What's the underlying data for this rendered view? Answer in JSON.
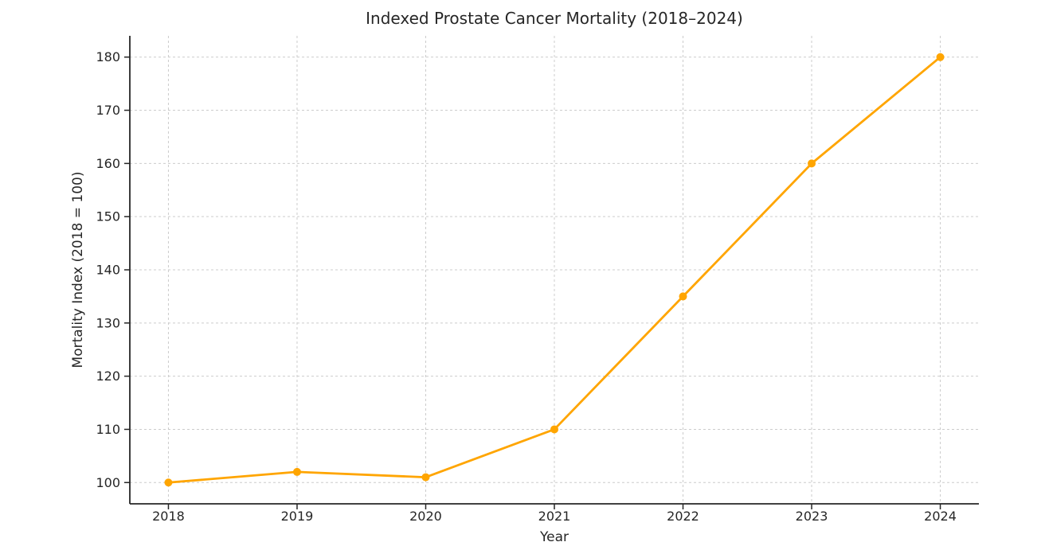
{
  "chart_data": {
    "type": "line",
    "title": "Indexed Prostate Cancer Mortality (2018–2024)",
    "xlabel": "Year",
    "ylabel": "Mortality Index (2018 = 100)",
    "x": [
      2018,
      2019,
      2020,
      2021,
      2022,
      2023,
      2024
    ],
    "series": [
      {
        "name": "Mortality Index",
        "values": [
          100,
          102,
          101,
          110,
          135,
          160,
          180
        ],
        "color": "#FFA500",
        "marker": "circle"
      }
    ],
    "xticks": [
      2018,
      2019,
      2020,
      2021,
      2022,
      2023,
      2024
    ],
    "yticks": [
      100,
      110,
      120,
      130,
      140,
      150,
      160,
      170,
      180
    ],
    "xlim": [
      2017.7,
      2024.3
    ],
    "ylim": [
      96,
      184
    ],
    "grid": {
      "show": true,
      "style": "dashed",
      "color": "#cccccc"
    },
    "legend": {
      "show": false
    },
    "background": "#ffffff",
    "axis_color": "#262626",
    "text_color": "#262626",
    "line_width": 2.8,
    "marker_radius": 5
  }
}
